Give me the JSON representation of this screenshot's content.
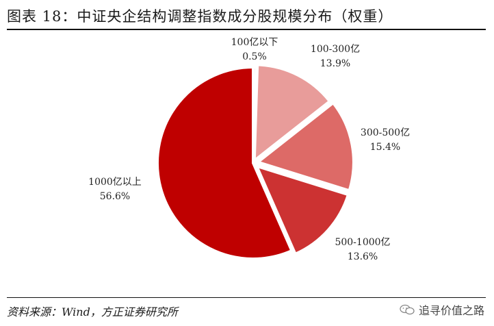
{
  "figure": {
    "title": "图表 18：中证央企结构调整指数成分股规模分布（权重）",
    "source": "资料来源：Wind，方正证券研究所",
    "watermark": "追寻价值之路"
  },
  "chart_data": {
    "type": "pie",
    "start_angle_deg": 0,
    "direction": "clockwise",
    "exploded": true,
    "slices": [
      {
        "label": "100亿以下",
        "value": 0.5,
        "value_text": "0.5%",
        "color": "#f3c9c7"
      },
      {
        "label": "100-300亿",
        "value": 13.9,
        "value_text": "13.9%",
        "color": "#e89c9a"
      },
      {
        "label": "300-500亿",
        "value": 15.4,
        "value_text": "15.4%",
        "color": "#dd6a67"
      },
      {
        "label": "500-1000亿",
        "value": 13.6,
        "value_text": "13.6%",
        "color": "#cc3232"
      },
      {
        "label": "1000亿以上",
        "value": 56.6,
        "value_text": "56.6%",
        "color": "#bf0000"
      }
    ]
  }
}
